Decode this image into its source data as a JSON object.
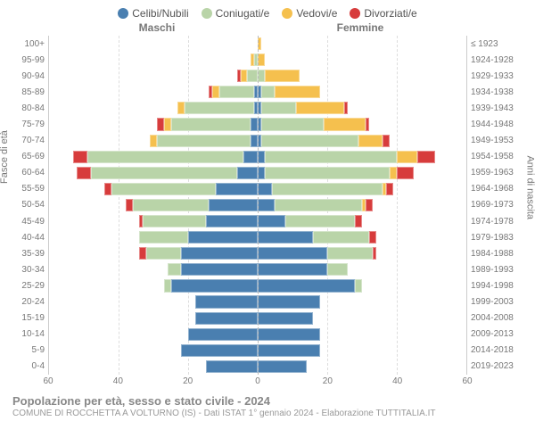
{
  "legend": {
    "items": [
      {
        "label": "Celibi/Nubili",
        "color": "#4a7fb0"
      },
      {
        "label": "Coniugati/e",
        "color": "#b9d4a8"
      },
      {
        "label": "Vedovi/e",
        "color": "#f5c04e"
      },
      {
        "label": "Divorziati/e",
        "color": "#d73c3c"
      }
    ]
  },
  "gender": {
    "male": "Maschi",
    "female": "Femmine"
  },
  "axis_titles": {
    "left": "Fasce di età",
    "right": "Anni di nascita"
  },
  "age_labels": [
    "100+",
    "95-99",
    "90-94",
    "85-89",
    "80-84",
    "75-79",
    "70-74",
    "65-69",
    "60-64",
    "55-59",
    "50-54",
    "45-49",
    "40-44",
    "35-39",
    "30-34",
    "25-29",
    "20-24",
    "15-19",
    "10-14",
    "5-9",
    "0-4"
  ],
  "birth_labels": [
    "≤ 1923",
    "1924-1928",
    "1929-1933",
    "1934-1938",
    "1939-1943",
    "1944-1948",
    "1949-1953",
    "1954-1958",
    "1959-1963",
    "1964-1968",
    "1969-1973",
    "1974-1978",
    "1979-1983",
    "1984-1988",
    "1989-1993",
    "1994-1998",
    "1999-2003",
    "2004-2008",
    "2009-2013",
    "2014-2018",
    "2019-2023"
  ],
  "x_axis": {
    "ticks": [
      60,
      40,
      20,
      0,
      20,
      40,
      60
    ],
    "max": 60
  },
  "colors": {
    "celibi": "#4a7fb0",
    "coniugati": "#b9d4a8",
    "vedovi": "#f5c04e",
    "divorziati": "#d73c3c",
    "grid": "#dddddd",
    "center": "#bbbbbb",
    "background": "#ffffff"
  },
  "data": {
    "male": [
      {
        "celibi": 0,
        "coniugati": 0,
        "vedovi": 0,
        "divorziati": 0
      },
      {
        "celibi": 0,
        "coniugati": 1,
        "vedovi": 1,
        "divorziati": 0
      },
      {
        "celibi": 0,
        "coniugati": 3,
        "vedovi": 2,
        "divorziati": 1
      },
      {
        "celibi": 1,
        "coniugati": 10,
        "vedovi": 2,
        "divorziati": 1
      },
      {
        "celibi": 1,
        "coniugati": 20,
        "vedovi": 2,
        "divorziati": 0
      },
      {
        "celibi": 2,
        "coniugati": 23,
        "vedovi": 2,
        "divorziati": 2
      },
      {
        "celibi": 2,
        "coniugati": 27,
        "vedovi": 2,
        "divorziati": 0
      },
      {
        "celibi": 4,
        "coniugati": 45,
        "vedovi": 0,
        "divorziati": 4
      },
      {
        "celibi": 6,
        "coniugati": 42,
        "vedovi": 0,
        "divorziati": 4
      },
      {
        "celibi": 12,
        "coniugati": 30,
        "vedovi": 0,
        "divorziati": 2
      },
      {
        "celibi": 14,
        "coniugati": 22,
        "vedovi": 0,
        "divorziati": 2
      },
      {
        "celibi": 15,
        "coniugati": 18,
        "vedovi": 0,
        "divorziati": 1
      },
      {
        "celibi": 20,
        "coniugati": 14,
        "vedovi": 0,
        "divorziati": 0
      },
      {
        "celibi": 22,
        "coniugati": 10,
        "vedovi": 0,
        "divorziati": 2
      },
      {
        "celibi": 22,
        "coniugati": 4,
        "vedovi": 0,
        "divorziati": 0
      },
      {
        "celibi": 25,
        "coniugati": 2,
        "vedovi": 0,
        "divorziati": 0
      },
      {
        "celibi": 18,
        "coniugati": 0,
        "vedovi": 0,
        "divorziati": 0
      },
      {
        "celibi": 18,
        "coniugati": 0,
        "vedovi": 0,
        "divorziati": 0
      },
      {
        "celibi": 20,
        "coniugati": 0,
        "vedovi": 0,
        "divorziati": 0
      },
      {
        "celibi": 22,
        "coniugati": 0,
        "vedovi": 0,
        "divorziati": 0
      },
      {
        "celibi": 15,
        "coniugati": 0,
        "vedovi": 0,
        "divorziati": 0
      }
    ],
    "female": [
      {
        "celibi": 0,
        "coniugati": 0,
        "vedovi": 1,
        "divorziati": 0
      },
      {
        "celibi": 0,
        "coniugati": 0,
        "vedovi": 2,
        "divorziati": 0
      },
      {
        "celibi": 0,
        "coniugati": 2,
        "vedovi": 10,
        "divorziati": 0
      },
      {
        "celibi": 1,
        "coniugati": 4,
        "vedovi": 13,
        "divorziati": 0
      },
      {
        "celibi": 1,
        "coniugati": 10,
        "vedovi": 14,
        "divorziati": 1
      },
      {
        "celibi": 1,
        "coniugati": 18,
        "vedovi": 12,
        "divorziati": 1
      },
      {
        "celibi": 1,
        "coniugati": 28,
        "vedovi": 7,
        "divorziati": 2
      },
      {
        "celibi": 2,
        "coniugati": 38,
        "vedovi": 6,
        "divorziati": 5
      },
      {
        "celibi": 2,
        "coniugati": 36,
        "vedovi": 2,
        "divorziati": 5
      },
      {
        "celibi": 4,
        "coniugati": 32,
        "vedovi": 1,
        "divorziati": 2
      },
      {
        "celibi": 5,
        "coniugati": 25,
        "vedovi": 1,
        "divorziati": 2
      },
      {
        "celibi": 8,
        "coniugati": 20,
        "vedovi": 0,
        "divorziati": 2
      },
      {
        "celibi": 16,
        "coniugati": 16,
        "vedovi": 0,
        "divorziati": 2
      },
      {
        "celibi": 20,
        "coniugati": 13,
        "vedovi": 0,
        "divorziati": 1
      },
      {
        "celibi": 20,
        "coniugati": 6,
        "vedovi": 0,
        "divorziati": 0
      },
      {
        "celibi": 28,
        "coniugati": 2,
        "vedovi": 0,
        "divorziati": 0
      },
      {
        "celibi": 18,
        "coniugati": 0,
        "vedovi": 0,
        "divorziati": 0
      },
      {
        "celibi": 16,
        "coniugati": 0,
        "vedovi": 0,
        "divorziati": 0
      },
      {
        "celibi": 18,
        "coniugati": 0,
        "vedovi": 0,
        "divorziati": 0
      },
      {
        "celibi": 18,
        "coniugati": 0,
        "vedovi": 0,
        "divorziati": 0
      },
      {
        "celibi": 14,
        "coniugati": 0,
        "vedovi": 0,
        "divorziati": 0
      }
    ]
  },
  "footer": {
    "title": "Popolazione per età, sesso e stato civile - 2024",
    "subtitle": "COMUNE DI ROCCHETTA A VOLTURNO (IS) - Dati ISTAT 1° gennaio 2024 - Elaborazione TUTTITALIA.IT"
  }
}
